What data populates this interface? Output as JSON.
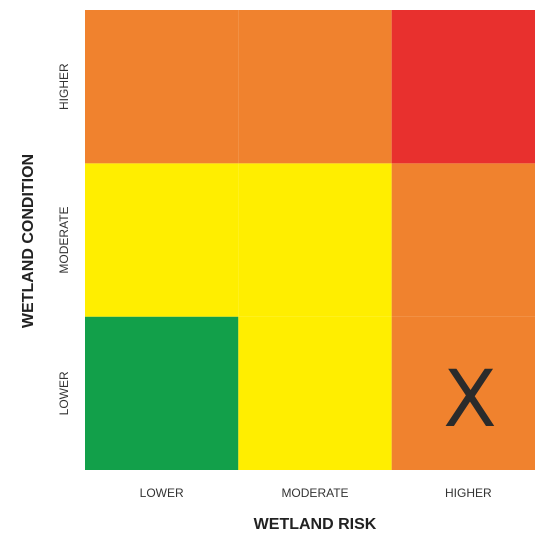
{
  "chart_data": {
    "type": "heatmap",
    "title": "",
    "xlabel": "WETLAND RISK",
    "ylabel": "WETLAND CONDITION",
    "x_categories": [
      "LOWER",
      "MODERATE",
      "HIGHER"
    ],
    "y_categories": [
      "LOWER",
      "MODERATE",
      "HIGHER"
    ],
    "cells": [
      {
        "x": "LOWER",
        "y": "LOWER",
        "level": "low",
        "color": "#12a04a"
      },
      {
        "x": "MODERATE",
        "y": "LOWER",
        "level": "moderate",
        "color": "#ffee00"
      },
      {
        "x": "HIGHER",
        "y": "LOWER",
        "level": "high",
        "color": "#f0822e"
      },
      {
        "x": "LOWER",
        "y": "MODERATE",
        "level": "moderate",
        "color": "#ffee00"
      },
      {
        "x": "MODERATE",
        "y": "MODERATE",
        "level": "moderate",
        "color": "#ffee00"
      },
      {
        "x": "HIGHER",
        "y": "MODERATE",
        "level": "high",
        "color": "#f0822e"
      },
      {
        "x": "LOWER",
        "y": "HIGHER",
        "level": "high",
        "color": "#f0822e"
      },
      {
        "x": "MODERATE",
        "y": "HIGHER",
        "level": "high",
        "color": "#f0822e"
      },
      {
        "x": "HIGHER",
        "y": "HIGHER",
        "level": "very-high",
        "color": "#e8302e"
      }
    ],
    "marker": {
      "x": "HIGHER",
      "y": "LOWER",
      "label": "X"
    },
    "grid": false,
    "legend": "none"
  }
}
